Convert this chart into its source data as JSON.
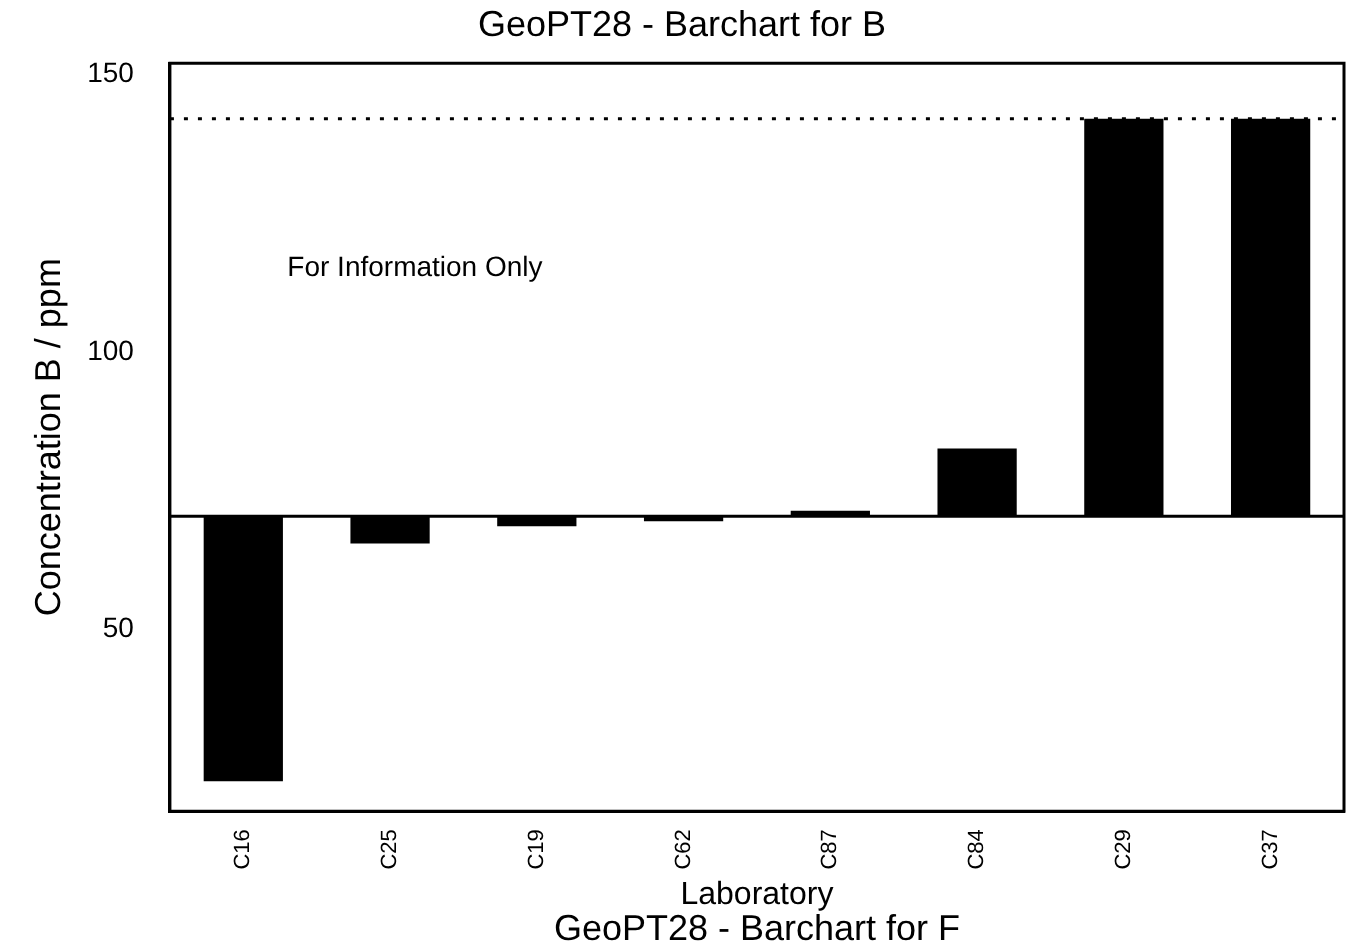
{
  "chart_data": {
    "type": "bar",
    "title": "GeoPT28 - Barchart for B",
    "xlabel": "Laboratory",
    "ylabel": "Concentration B / ppm",
    "categories": [
      "C16",
      "C25",
      "C19",
      "C62",
      "C87",
      "C84",
      "C29",
      "C37"
    ],
    "base": [
      70.4,
      70.4,
      70.4,
      70.4,
      70.4,
      70.4,
      70.4,
      70.4
    ],
    "values": [
      -47.7,
      -4.9,
      -1.8,
      -0.9,
      1.0,
      12.2,
      71.6,
      71.6
    ],
    "color": "#000000",
    "ylim": [
      17.3,
      152
    ],
    "yticks": [
      50,
      100,
      150
    ],
    "legend": false,
    "ref_lines": [
      {
        "axis": "y",
        "value": 70.4,
        "line_style": "solid",
        "color": "#000000"
      },
      {
        "axis": "y",
        "value": 142,
        "line_style": "dotted",
        "color": "#000000"
      }
    ],
    "annotations": [
      "For Information Only",
      "GeoPT28 - Barchart for F"
    ]
  }
}
